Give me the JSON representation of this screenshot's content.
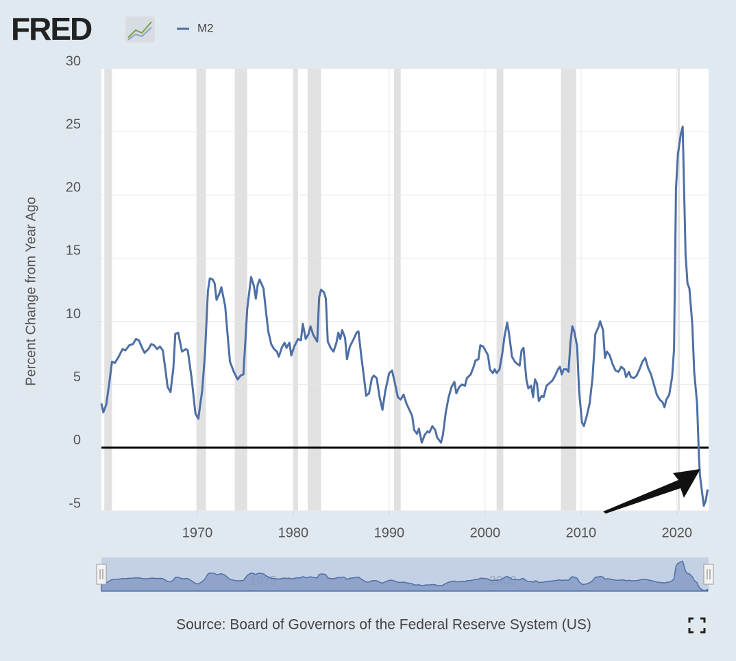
{
  "logo": "FRED",
  "chart_data": {
    "type": "line",
    "ylabel": "Percent Change from Year Ago",
    "source": "Source: Board of Governors of the Federal Reserve System (US)",
    "xlim": [
      1960,
      2023.3
    ],
    "xticks": [
      1970,
      1980,
      1990,
      2000,
      2010,
      2020
    ],
    "ylim": [
      -5,
      30
    ],
    "yticks": [
      -5,
      0,
      5,
      10,
      15,
      20,
      25,
      30
    ],
    "grid": true,
    "navigator_ticks": [
      1975,
      2000
    ],
    "recessions": [
      [
        1960.3,
        1961.1
      ],
      [
        1969.9,
        1970.9
      ],
      [
        1973.9,
        1975.2
      ],
      [
        1980.0,
        1980.5
      ],
      [
        1981.5,
        1982.9
      ],
      [
        1990.5,
        1991.2
      ],
      [
        2001.2,
        2001.9
      ],
      [
        2007.9,
        2009.5
      ],
      [
        2020.1,
        2020.3
      ]
    ],
    "zero_line": 0,
    "x": [
      1960.0,
      1960.2,
      1960.5,
      1960.8,
      1961.1,
      1961.4,
      1961.8,
      1962.2,
      1962.5,
      1962.9,
      1963.3,
      1963.6,
      1963.9,
      1964.3,
      1964.5,
      1964.9,
      1965.2,
      1965.5,
      1965.8,
      1966.1,
      1966.4,
      1966.7,
      1966.9,
      1967.2,
      1967.5,
      1967.7,
      1968.0,
      1968.4,
      1968.8,
      1969.0,
      1969.4,
      1969.8,
      1970.1,
      1970.5,
      1970.8,
      1971.1,
      1971.3,
      1971.6,
      1971.8,
      1972.0,
      1972.3,
      1972.5,
      1972.9,
      1973.2,
      1973.4,
      1973.8,
      1974.2,
      1974.5,
      1974.8,
      1975.2,
      1975.6,
      1975.9,
      1976.1,
      1976.3,
      1976.5,
      1976.9,
      1977.2,
      1977.4,
      1977.7,
      1978.0,
      1978.3,
      1978.5,
      1978.8,
      1979.1,
      1979.3,
      1979.6,
      1979.8,
      1980.1,
      1980.5,
      1980.8,
      1981.0,
      1981.3,
      1981.6,
      1981.8,
      1982.1,
      1982.5,
      1982.7,
      1982.9,
      1983.2,
      1983.4,
      1983.6,
      1983.9,
      1984.2,
      1984.5,
      1984.7,
      1984.9,
      1985.1,
      1985.4,
      1985.6,
      1985.9,
      1986.3,
      1986.6,
      1986.8,
      1987.1,
      1987.4,
      1987.6,
      1987.9,
      1988.2,
      1988.4,
      1988.7,
      1989.0,
      1989.3,
      1989.6,
      1990.0,
      1990.3,
      1990.6,
      1990.9,
      1991.2,
      1991.5,
      1991.8,
      1992.1,
      1992.4,
      1992.6,
      1992.9,
      1993.1,
      1993.4,
      1993.7,
      1994.0,
      1994.2,
      1994.5,
      1994.8,
      1995.0,
      1995.4,
      1995.6,
      1995.9,
      1996.2,
      1996.5,
      1996.8,
      1997.0,
      1997.3,
      1997.6,
      1997.9,
      1998.1,
      1998.5,
      1998.8,
      1999.0,
      1999.3,
      1999.5,
      1999.8,
      2000.1,
      2000.3,
      2000.5,
      2000.8,
      2001.0,
      2001.2,
      2001.5,
      2001.8,
      2002.0,
      2002.3,
      2002.5,
      2002.8,
      2003.1,
      2003.4,
      2003.6,
      2003.8,
      2004.0,
      2004.3,
      2004.5,
      2004.8,
      2005.0,
      2005.2,
      2005.4,
      2005.6,
      2005.9,
      2006.1,
      2006.4,
      2006.7,
      2007.0,
      2007.3,
      2007.6,
      2007.8,
      2008.0,
      2008.2,
      2008.5,
      2008.7,
      2008.9,
      2009.1,
      2009.3,
      2009.6,
      2009.8,
      2010.1,
      2010.3,
      2010.6,
      2010.9,
      2011.2,
      2011.5,
      2011.8,
      2012.0,
      2012.3,
      2012.5,
      2012.7,
      2013.0,
      2013.3,
      2013.6,
      2013.9,
      2014.2,
      2014.5,
      2014.7,
      2015.0,
      2015.2,
      2015.5,
      2015.8,
      2016.1,
      2016.4,
      2016.7,
      2017.0,
      2017.3,
      2017.6,
      2017.9,
      2018.2,
      2018.5,
      2018.7,
      2018.9,
      2019.2,
      2019.5,
      2019.7,
      2019.9,
      2020.1,
      2020.4,
      2020.6,
      2020.9,
      2021.1,
      2021.3,
      2021.6,
      2021.8,
      2022.1,
      2022.3,
      2022.4,
      2022.8,
      2023.0,
      2023.2
    ],
    "series": [
      {
        "name": "M2",
        "color": "#4e6fa5",
        "values": [
          3.5,
          2.8,
          3.4,
          5.0,
          6.8,
          6.7,
          7.2,
          7.8,
          7.7,
          8.1,
          8.2,
          8.6,
          8.5,
          7.8,
          7.5,
          7.8,
          8.2,
          8.1,
          7.8,
          8.0,
          7.7,
          6.0,
          4.8,
          4.4,
          6.3,
          9.0,
          9.1,
          7.6,
          7.8,
          7.7,
          5.5,
          2.7,
          2.3,
          4.5,
          7.5,
          12.4,
          13.4,
          13.3,
          13.0,
          11.7,
          12.2,
          12.7,
          11.2,
          8.5,
          6.8,
          6.0,
          5.4,
          5.7,
          5.8,
          11.0,
          13.5,
          12.8,
          11.8,
          12.9,
          13.3,
          12.6,
          10.5,
          9.2,
          8.2,
          7.8,
          7.6,
          7.2,
          7.9,
          8.3,
          7.9,
          8.3,
          7.3,
          8.0,
          8.6,
          8.5,
          9.8,
          8.6,
          9.0,
          9.6,
          8.9,
          8.4,
          11.9,
          12.5,
          12.3,
          11.8,
          8.4,
          7.9,
          7.6,
          8.3,
          9.1,
          8.6,
          9.3,
          8.7,
          7.0,
          8.0,
          8.6,
          9.1,
          9.2,
          7.2,
          5.4,
          4.1,
          4.3,
          5.5,
          5.7,
          5.5,
          4.0,
          3.0,
          4.5,
          5.9,
          6.1,
          5.1,
          4.0,
          3.8,
          4.2,
          3.5,
          3.0,
          2.5,
          1.4,
          1.1,
          1.5,
          0.4,
          1.0,
          1.3,
          1.2,
          1.7,
          1.4,
          0.8,
          0.4,
          1.0,
          2.8,
          4.0,
          4.8,
          5.2,
          4.3,
          4.8,
          5.0,
          4.9,
          5.5,
          5.8,
          6.4,
          6.9,
          7.0,
          8.1,
          8.0,
          7.6,
          7.3,
          6.2,
          5.9,
          6.2,
          5.9,
          6.2,
          7.5,
          8.7,
          9.9,
          9.0,
          7.2,
          6.8,
          6.6,
          6.5,
          7.7,
          7.9,
          5.4,
          4.7,
          4.9,
          4.0,
          5.4,
          5.1,
          3.7,
          4.1,
          4.0,
          4.9,
          5.1,
          5.3,
          5.7,
          6.2,
          6.4,
          5.8,
          6.2,
          6.2,
          6.0,
          8.3,
          9.6,
          9.2,
          8.0,
          4.5,
          2.0,
          1.7,
          2.5,
          3.5,
          5.5,
          9.0,
          9.5,
          10.0,
          9.3,
          7.1,
          7.6,
          7.3,
          6.6,
          6.1,
          6.0,
          6.4,
          6.2,
          5.6,
          6.0,
          5.6,
          5.5,
          5.7,
          6.2,
          6.8,
          7.1,
          6.3,
          5.8,
          5.0,
          4.2,
          3.8,
          3.6,
          3.2,
          3.8,
          4.2,
          5.6,
          7.8,
          20.5,
          23.2,
          24.8,
          25.4,
          15.3,
          13.0,
          12.6,
          9.8,
          6.0,
          3.5,
          -0.8,
          -2.2,
          -4.6,
          -4.2,
          -3.3
        ]
      }
    ]
  }
}
